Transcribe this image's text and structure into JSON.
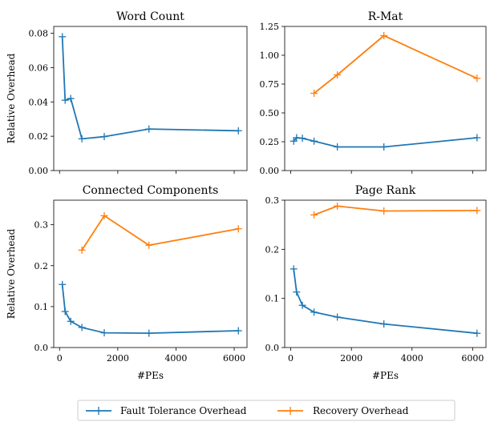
{
  "figure": {
    "shared_xlabel": "#PEs",
    "shared_ylabel": "Relative Overhead"
  },
  "legend": {
    "placement": "bottom-center",
    "entries": [
      {
        "name": "Fault Tolerance Overhead",
        "color": "#1f77b4"
      },
      {
        "name": "Recovery Overhead",
        "color": "#ff7f0e"
      }
    ]
  },
  "chart_data": [
    {
      "type": "line",
      "title": "Word Count",
      "xlabel": "",
      "ylabel": "Relative Overhead",
      "xlim": [
        -200,
        6440
      ],
      "ylim": [
        0,
        0.084
      ],
      "xticks": [
        0,
        2000,
        4000,
        6000
      ],
      "xtick_labels": [
        "",
        "",
        "",
        ""
      ],
      "yticks": [
        0,
        0.02,
        0.04,
        0.06,
        0.08
      ],
      "ytick_labels": [
        "0.00",
        "0.02",
        "0.04",
        "0.06",
        "0.08"
      ],
      "series": [
        {
          "name": "Fault Tolerance Overhead",
          "color": "#1f77b4",
          "x": [
            96,
            192,
            384,
            768,
            1536,
            3072,
            6144
          ],
          "y": [
            0.078,
            0.041,
            0.042,
            0.0185,
            0.0198,
            0.0242,
            0.0232
          ]
        }
      ]
    },
    {
      "type": "line",
      "title": "R-Mat",
      "xlabel": "",
      "ylabel": "",
      "xlim": [
        -200,
        6440
      ],
      "ylim": [
        0,
        1.25
      ],
      "xticks": [
        0,
        2000,
        4000,
        6000
      ],
      "xtick_labels": [
        "",
        "",
        "",
        ""
      ],
      "yticks": [
        0,
        0.25,
        0.5,
        0.75,
        1.0,
        1.25
      ],
      "ytick_labels": [
        "0.00",
        "0.25",
        "0.50",
        "0.75",
        "1.00",
        "1.25"
      ],
      "series": [
        {
          "name": "Fault Tolerance Overhead",
          "color": "#1f77b4",
          "x": [
            96,
            192,
            384,
            768,
            1536,
            3072,
            6144
          ],
          "y": [
            0.255,
            0.285,
            0.28,
            0.255,
            0.205,
            0.205,
            0.285
          ]
        },
        {
          "name": "Recovery Overhead",
          "color": "#ff7f0e",
          "x": [
            768,
            1536,
            3072,
            6144
          ],
          "y": [
            0.67,
            0.83,
            1.17,
            0.8
          ]
        }
      ]
    },
    {
      "type": "line",
      "title": "Connected Components",
      "xlabel": "#PEs",
      "ylabel": "Relative Overhead",
      "xlim": [
        -200,
        6440
      ],
      "ylim": [
        0,
        0.36
      ],
      "xticks": [
        0,
        2000,
        4000,
        6000
      ],
      "xtick_labels": [
        "0",
        "2000",
        "4000",
        "6000"
      ],
      "yticks": [
        0,
        0.1,
        0.2,
        0.3
      ],
      "ytick_labels": [
        "0.0",
        "0.1",
        "0.2",
        "0.3"
      ],
      "series": [
        {
          "name": "Fault Tolerance Overhead",
          "color": "#1f77b4",
          "x": [
            96,
            192,
            384,
            768,
            1536,
            3072,
            6144
          ],
          "y": [
            0.154,
            0.088,
            0.064,
            0.049,
            0.036,
            0.035,
            0.041
          ]
        },
        {
          "name": "Recovery Overhead",
          "color": "#ff7f0e",
          "x": [
            768,
            1536,
            3072,
            6144
          ],
          "y": [
            0.238,
            0.322,
            0.25,
            0.29
          ]
        }
      ]
    },
    {
      "type": "line",
      "title": "Page Rank",
      "xlabel": "#PEs",
      "ylabel": "",
      "xlim": [
        -200,
        6440
      ],
      "ylim": [
        0,
        0.3
      ],
      "xticks": [
        0,
        2000,
        4000,
        6000
      ],
      "xtick_labels": [
        "0",
        "2000",
        "4000",
        "6000"
      ],
      "yticks": [
        0,
        0.1,
        0.2,
        0.3
      ],
      "ytick_labels": [
        "0.0",
        "0.1",
        "0.2",
        "0.3"
      ],
      "series": [
        {
          "name": "Fault Tolerance Overhead",
          "color": "#1f77b4",
          "x": [
            96,
            192,
            384,
            768,
            1536,
            3072,
            6144
          ],
          "y": [
            0.16,
            0.113,
            0.086,
            0.072,
            0.062,
            0.048,
            0.029
          ]
        },
        {
          "name": "Recovery Overhead",
          "color": "#ff7f0e",
          "x": [
            768,
            1536,
            3072,
            6144
          ],
          "y": [
            0.27,
            0.288,
            0.278,
            0.279
          ]
        }
      ]
    }
  ]
}
